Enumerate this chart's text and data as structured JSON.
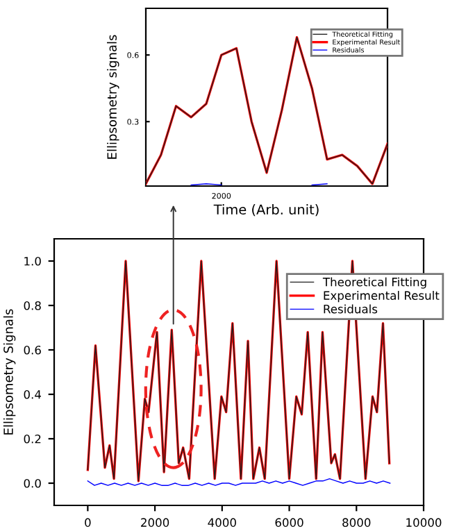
{
  "chart_data": [
    {
      "type": "line",
      "xlabel": "Time (Arb. unit)",
      "ylabel": "Ellipsometry signals",
      "categories": [
        null,
        null,
        null,
        null,
        null,
        "2000",
        null,
        null,
        null,
        null,
        null,
        null,
        null,
        null,
        null,
        null,
        null
      ],
      "ylim": [
        0.01,
        0.81
      ],
      "yticks": [
        {
          "value": 0.3,
          "label": "0.3"
        },
        {
          "value": 0.6,
          "label": "0.6"
        }
      ],
      "legend": "top right",
      "series": [
        {
          "name": "Experimental Result",
          "color": "#ff0000",
          "values": [
            0.02,
            0.15,
            0.37,
            0.32,
            0.38,
            0.6,
            0.63,
            0.3,
            0.07,
            0.35,
            0.68,
            0.45,
            0.13,
            0.15,
            0.1,
            0.02,
            0.2
          ]
        },
        {
          "name": "Theoretical Fitting",
          "color": "#202020",
          "values": [
            0.02,
            0.15,
            0.37,
            0.32,
            0.38,
            0.6,
            0.63,
            0.3,
            0.07,
            0.35,
            0.68,
            0.45,
            0.13,
            0.15,
            0.1,
            0.02,
            0.2
          ]
        },
        {
          "name": "Residuals",
          "color": "#0000ff",
          "values": [
            null,
            null,
            null,
            0.015,
            0.02,
            0.015,
            null,
            null,
            null,
            null,
            null,
            0.015,
            0.02,
            null,
            null,
            null,
            null
          ]
        }
      ]
    },
    {
      "type": "line",
      "ylabel": "Ellipsometry Signals",
      "xlim": [
        -1000,
        10000
      ],
      "ylim": [
        -0.1,
        1.1
      ],
      "xticks": [
        0,
        2000,
        4000,
        6000,
        8000,
        10000
      ],
      "yticks": [
        {
          "value": 0,
          "label": "0.0"
        },
        {
          "value": 0.2,
          "label": "0.2"
        },
        {
          "value": 0.4,
          "label": "0.4"
        },
        {
          "value": 0.6,
          "label": "0.6"
        },
        {
          "value": 0.8,
          "label": "0.8"
        },
        {
          "value": 1,
          "label": "1.0"
        }
      ],
      "legend": "top right",
      "series": [
        {
          "name": "Theoretical Fitting",
          "color": "#202020",
          "x": [
            0,
            230,
            510,
            650,
            780,
            1130,
            1510,
            1700,
            1810,
            2060,
            2270,
            2500,
            2710,
            2840,
            3020,
            3380,
            3780,
            3980,
            4120,
            4310,
            4560,
            4770,
            4930,
            5110,
            5270,
            5620,
            6000,
            6210,
            6370,
            6550,
            6800,
            6990,
            7250,
            7360,
            7510,
            7880,
            8270,
            8480,
            8610,
            8790,
            8980
          ],
          "values": [
            0.06,
            0.62,
            0.07,
            0.17,
            0.02,
            1.0,
            0.01,
            0.38,
            0.32,
            0.68,
            0.05,
            0.69,
            0.09,
            0.16,
            0.02,
            1.0,
            0.02,
            0.39,
            0.32,
            0.72,
            0.02,
            0.64,
            0.02,
            0.16,
            0.02,
            1.0,
            0.02,
            0.39,
            0.31,
            0.68,
            0.02,
            0.68,
            0.09,
            0.13,
            0.02,
            1.0,
            0.02,
            0.39,
            0.32,
            0.72,
            0.09
          ]
        },
        {
          "name": "Experimental Result",
          "color": "#ff0000",
          "x": [
            0,
            230,
            510,
            650,
            780,
            1130,
            1510,
            1700,
            1810,
            2060,
            2270,
            2500,
            2710,
            2840,
            3020,
            3380,
            3780,
            3980,
            4120,
            4310,
            4560,
            4770,
            4930,
            5110,
            5270,
            5620,
            6000,
            6210,
            6370,
            6550,
            6800,
            6990,
            7250,
            7360,
            7510,
            7880,
            8270,
            8480,
            8610,
            8790,
            8980
          ],
          "values": [
            0.06,
            0.62,
            0.07,
            0.17,
            0.02,
            1.0,
            0.01,
            0.38,
            0.32,
            0.68,
            0.05,
            0.69,
            0.09,
            0.16,
            0.02,
            1.0,
            0.02,
            0.39,
            0.32,
            0.72,
            0.02,
            0.64,
            0.02,
            0.16,
            0.02,
            1.0,
            0.02,
            0.39,
            0.31,
            0.68,
            0.02,
            0.68,
            0.09,
            0.13,
            0.02,
            1.0,
            0.02,
            0.39,
            0.32,
            0.72,
            0.09
          ]
        },
        {
          "name": "Residuals",
          "color": "#0000ff",
          "x": [
            0,
            200,
            400,
            600,
            800,
            1000,
            1200,
            1400,
            1600,
            1800,
            2000,
            2200,
            2400,
            2600,
            2800,
            3000,
            3200,
            3400,
            3600,
            3800,
            4000,
            4200,
            4400,
            4600,
            4800,
            5000,
            5200,
            5400,
            5600,
            5800,
            6000,
            6200,
            6400,
            6600,
            6800,
            7000,
            7200,
            7400,
            7600,
            7800,
            8000,
            8200,
            8400,
            8600,
            8800,
            9000
          ],
          "values": [
            0.01,
            -0.01,
            0.0,
            -0.01,
            0.0,
            -0.01,
            0.0,
            -0.01,
            0.0,
            -0.01,
            0.0,
            -0.01,
            -0.01,
            0.0,
            -0.01,
            -0.01,
            0.0,
            -0.01,
            0.0,
            -0.01,
            0.0,
            0.0,
            -0.01,
            0.0,
            0.0,
            0.0,
            0.01,
            0.0,
            0.01,
            0.0,
            0.01,
            0.0,
            -0.01,
            0.0,
            0.01,
            0.01,
            0.02,
            0.01,
            0.0,
            0.01,
            0.0,
            0.0,
            0.01,
            0.0,
            0.01,
            0.0
          ]
        }
      ]
    }
  ]
}
